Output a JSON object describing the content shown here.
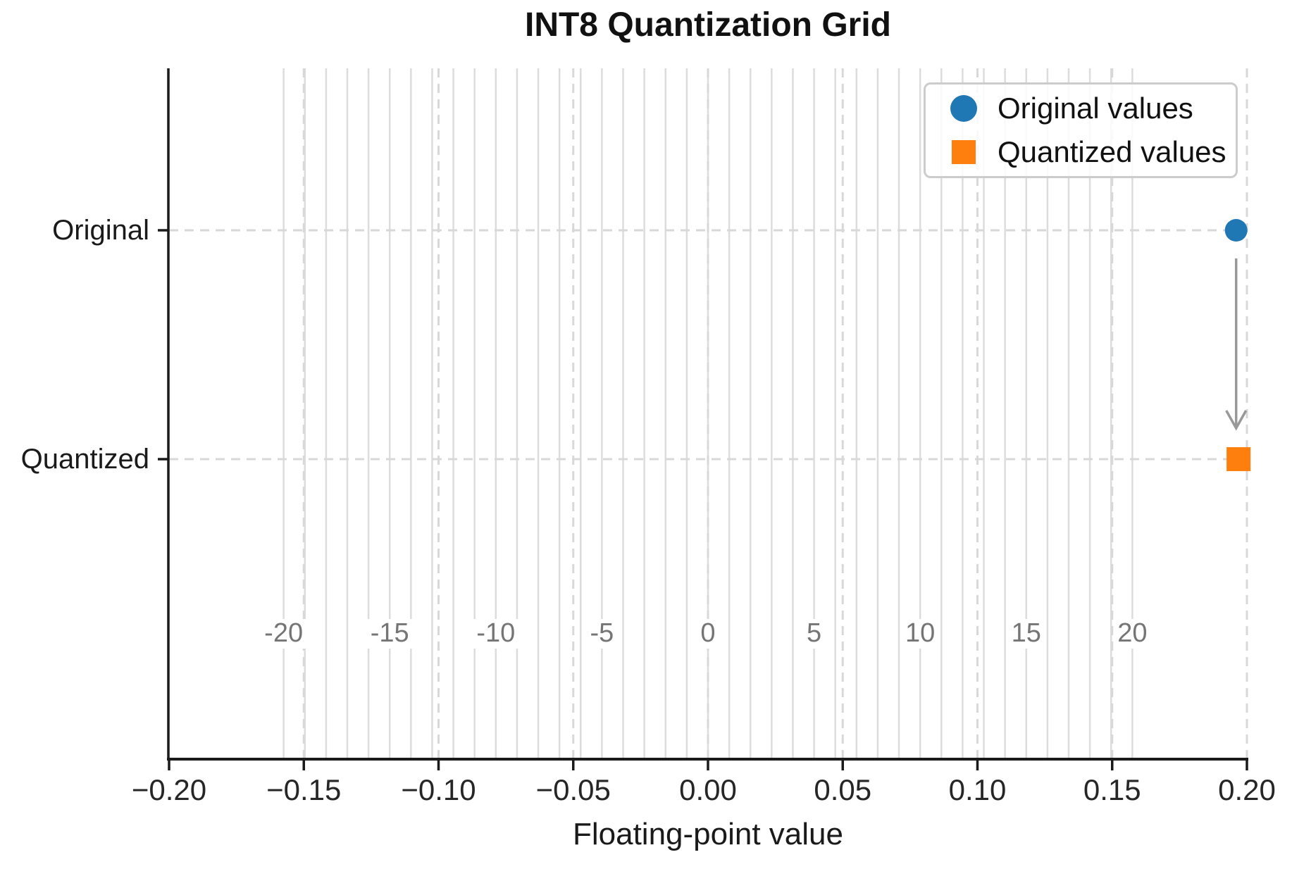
{
  "chart_data": {
    "type": "scatter",
    "title": "INT8 Quantization Grid",
    "xlabel": "Floating-point value",
    "xlim": [
      -0.2,
      0.2
    ],
    "x_ticks": {
      "values": [
        -0.2,
        -0.15,
        -0.1,
        -0.05,
        0.0,
        0.05,
        0.1,
        0.15,
        0.2
      ],
      "labels": [
        "−0.20",
        "−0.15",
        "−0.10",
        "−0.05",
        "0.00",
        "0.05",
        "0.10",
        "0.15",
        "0.20"
      ]
    },
    "y_categories": [
      "Original",
      "Quantized"
    ],
    "grid": {
      "major_vertical_dashed": true,
      "row_horizontal_dashed": true,
      "dashed_color": "#d8d8d8",
      "quant_line_color": "#dcdcdc"
    },
    "quant_grid": {
      "description": "INT8 quantization levels: integer multiples of scale",
      "scale": 0.007874,
      "int_min": -20,
      "int_max": 20,
      "label_values": [
        -20,
        -15,
        -10,
        -5,
        0,
        5,
        10,
        15,
        20
      ],
      "label_texts": [
        "-20",
        "-15",
        "-10",
        "-5",
        "0",
        "5",
        "10",
        "15",
        "20"
      ],
      "label_color": "#757575"
    },
    "series": [
      {
        "name": "Original values",
        "row": "Original",
        "marker": "circle",
        "color": "#1f77b4",
        "value": 0.196
      },
      {
        "name": "Quantized values",
        "row": "Quantized",
        "marker": "square",
        "color": "#ff7f0e",
        "value": 0.1969
      }
    ],
    "arrow": {
      "from_row": "Original",
      "to_row": "Quantized",
      "x_value": 0.196,
      "color": "#999999"
    },
    "legend": {
      "position": "upper right",
      "entries": [
        "Original values",
        "Quantized values"
      ]
    },
    "axis_color": "#1a1a1a"
  }
}
